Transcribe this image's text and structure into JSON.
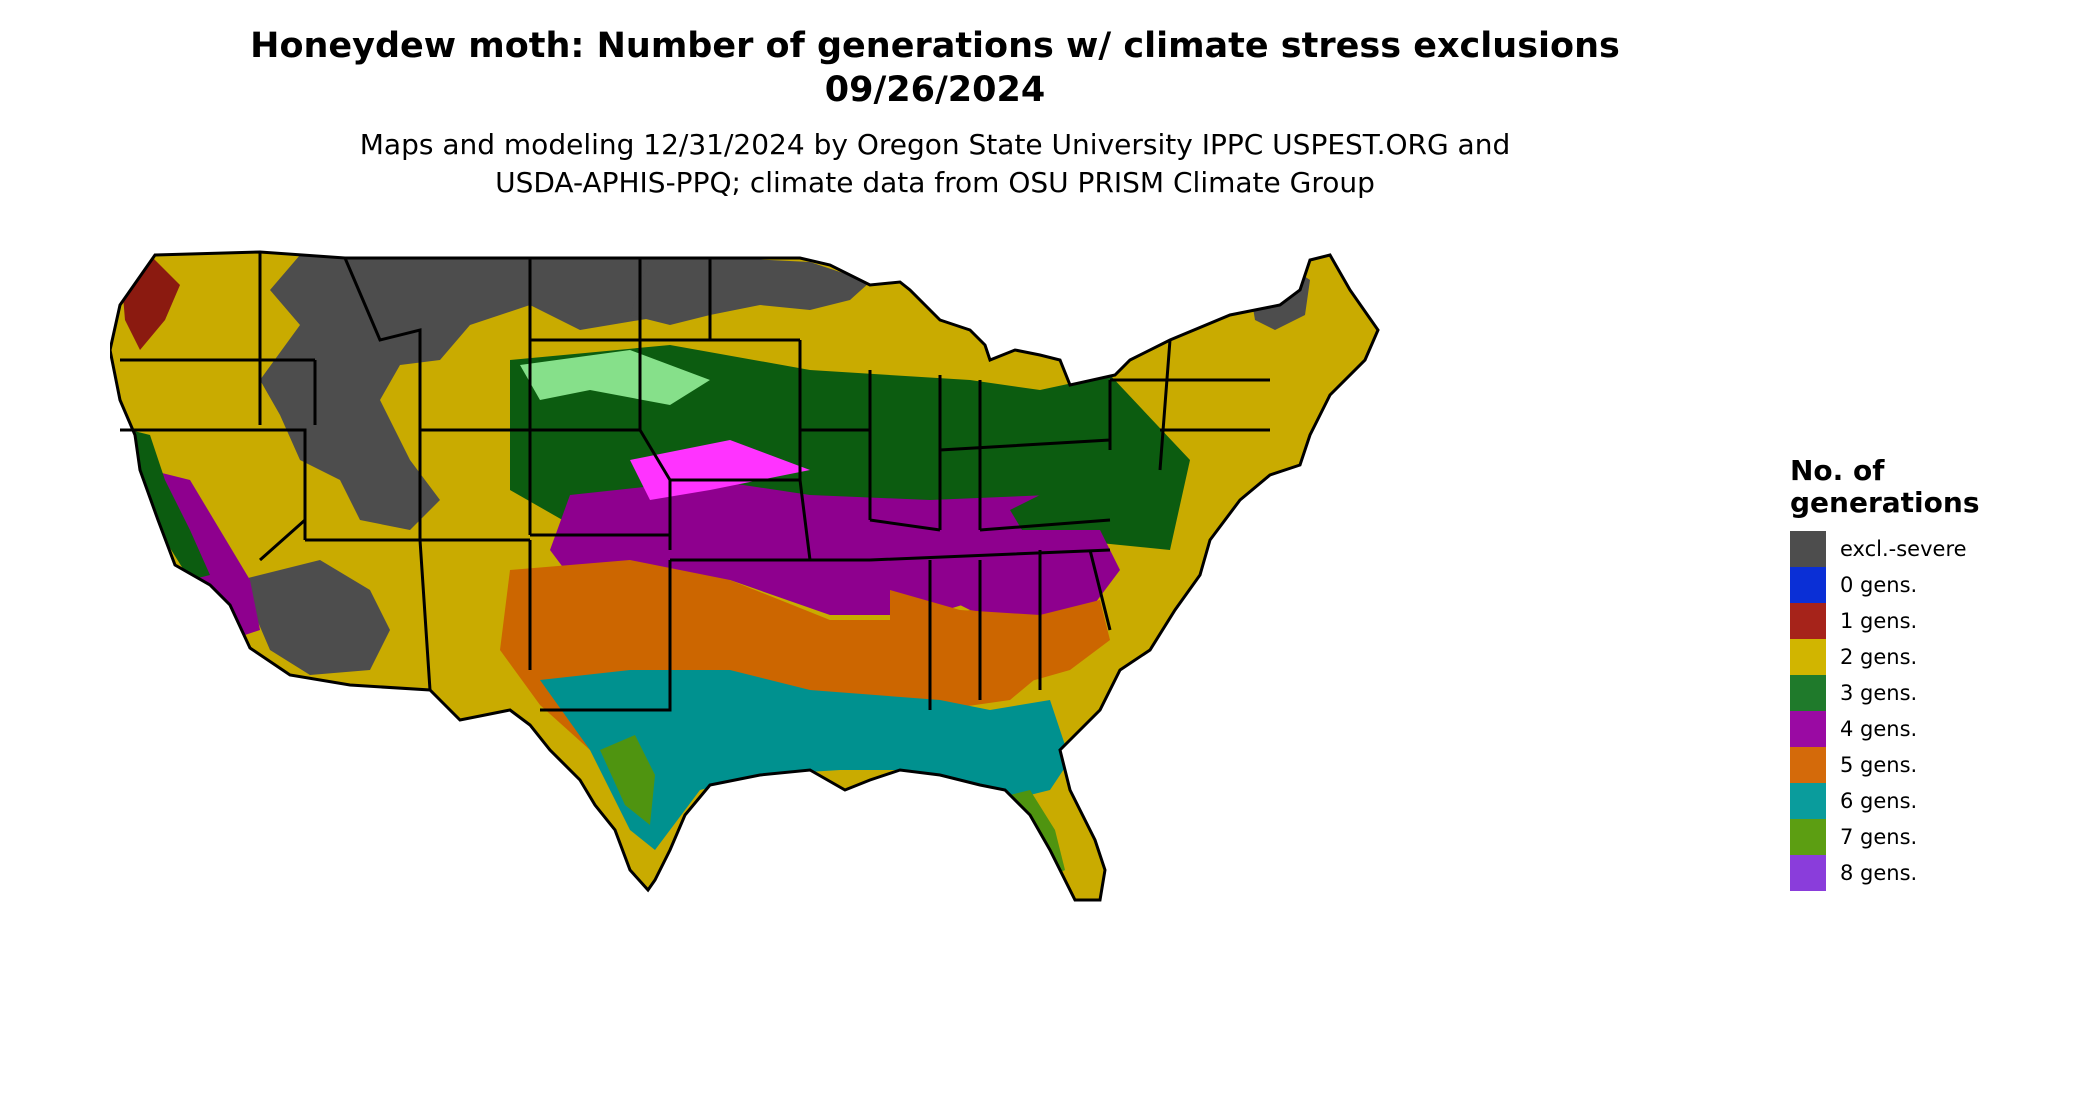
{
  "title_line1": "Honeydew moth: Number of generations w/ climate stress exclusions",
  "title_line2": "09/26/2024",
  "subtitle_line1": "Maps and modeling 12/31/2024 by Oregon State University IPPC USPEST.ORG and",
  "subtitle_line2": "USDA-APHIS-PPQ; climate data from OSU PRISM Climate Group",
  "legend": {
    "title_line1": "No. of",
    "title_line2": "generations",
    "items": [
      {
        "label": "excl.-severe",
        "color": "#4d4d4d"
      },
      {
        "label": "0 gens.",
        "color": "#0a2fd6"
      },
      {
        "label": "1 gens.",
        "color": "#a6231a"
      },
      {
        "label": "2 gens.",
        "color": "#d1b500"
      },
      {
        "label": "3 gens.",
        "color": "#1f7a2b"
      },
      {
        "label": "4 gens.",
        "color": "#9a0aa3"
      },
      {
        "label": "5 gens.",
        "color": "#d46a0a"
      },
      {
        "label": "6 gens.",
        "color": "#0a9c9c"
      },
      {
        "label": "7 gens.",
        "color": "#5c9e12"
      },
      {
        "label": "8 gens.",
        "color": "#8a3ddb"
      }
    ]
  },
  "map_colors": {
    "excluded": "#4d4d4d",
    "one": "#8b1a10",
    "two": "#c9ab00",
    "three": "#0c5c10",
    "three_light": "#86e08a",
    "four": "#8e008e",
    "four_light": "#ff33ff",
    "five": "#cc6600",
    "five_light": "#ff9933",
    "six": "#00918f",
    "six_light": "#00e6e6",
    "seven": "#4f9410",
    "seven_light": "#b8ff20",
    "yellow_light": "#ffff00",
    "borders": "#000000"
  }
}
